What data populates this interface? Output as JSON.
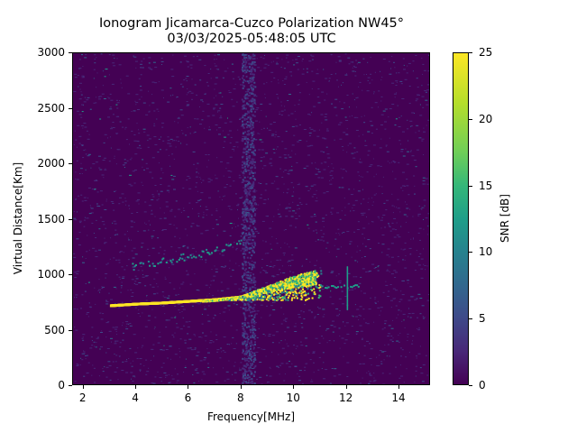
{
  "title": {
    "line1": "Ionogram Jicamarca-Cuzco Polarization NW45°",
    "line2": "03/03/2025-05:48:05 UTC"
  },
  "axes": {
    "xlabel": "Frequency[MHz]",
    "ylabel": "Virtual Distance[Km]",
    "xticks": [
      "2",
      "4",
      "6",
      "8",
      "10",
      "12",
      "14"
    ],
    "yticks": [
      "0",
      "500",
      "1000",
      "1500",
      "2000",
      "2500",
      "3000"
    ]
  },
  "colorbar": {
    "label": "SNR [dB]",
    "ticks": [
      "0",
      "5",
      "10",
      "15",
      "20",
      "25"
    ],
    "colormap": "viridis"
  },
  "chart_data": {
    "type": "heatmap",
    "title": "Ionogram Jicamarca-Cuzco Polarization NW45° 03/03/2025-05:48:05 UTC",
    "xlabel": "Frequency[MHz]",
    "ylabel": "Virtual Distance[Km]",
    "xlim": [
      1.6,
      15.2
    ],
    "ylim": [
      0,
      3000
    ],
    "xticks": [
      2,
      4,
      6,
      8,
      10,
      12,
      14
    ],
    "yticks": [
      0,
      500,
      1000,
      1500,
      2000,
      2500,
      3000
    ],
    "colorbar": {
      "label": "SNR [dB]",
      "range": [
        0,
        25
      ],
      "ticks": [
        0,
        5,
        10,
        15,
        20,
        25
      ]
    },
    "grid": false,
    "features": [
      {
        "name": "main F-layer trace (high SNR)",
        "points": [
          [
            3.0,
            720
          ],
          [
            4.0,
            735
          ],
          [
            5.0,
            745
          ],
          [
            6.0,
            760
          ],
          [
            7.0,
            775
          ],
          [
            8.0,
            800
          ],
          [
            9.0,
            850
          ],
          [
            10.0,
            900
          ],
          [
            10.8,
            920
          ]
        ],
        "snr_db": 25
      },
      {
        "name": "spread echoes above trace",
        "freq_range": [
          7.5,
          11.0
        ],
        "distance_range": [
          780,
          1050
        ],
        "snr_db": 20
      },
      {
        "name": "second-hop trace (faint)",
        "points": [
          [
            3.8,
            1080
          ],
          [
            5.0,
            1130
          ],
          [
            6.0,
            1180
          ],
          [
            7.0,
            1230
          ],
          [
            8.0,
            1300
          ]
        ],
        "snr_db": 12
      },
      {
        "name": "vertical interference line",
        "freq": 12.0,
        "distance_range": [
          700,
          1080
        ],
        "snr_db": 12
      },
      {
        "name": "broadband interference band",
        "freq_range": [
          8.0,
          8.5
        ],
        "distance_range": [
          0,
          3000
        ],
        "snr_db": 4
      }
    ]
  }
}
